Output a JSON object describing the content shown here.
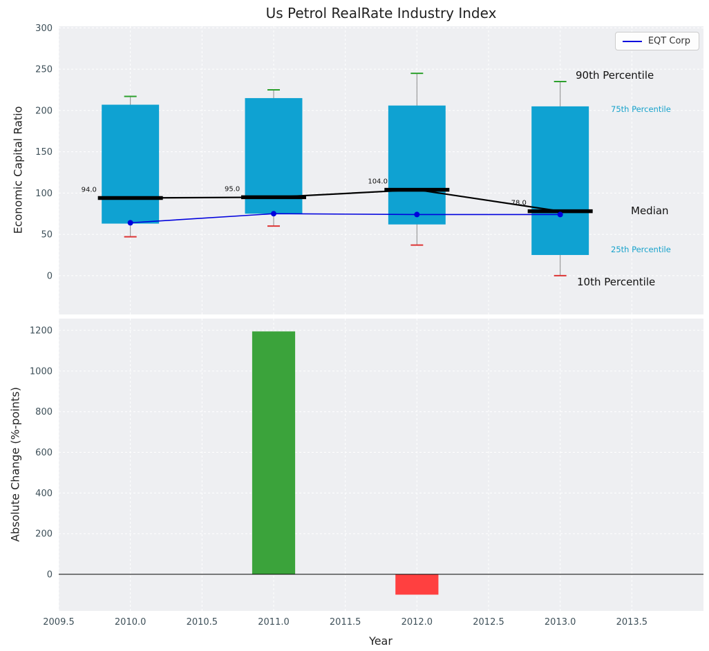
{
  "title": "Us Petrol RealRate Industry Index",
  "legend": {
    "label": "EQT Corp"
  },
  "labels": {
    "p90": "90th Percentile",
    "p75": "75th Percentile",
    "median": "Median",
    "p25": "25th Percentile",
    "p10": "10th Percentile",
    "xlabel": "Year",
    "ylabel_top": "Economic Capital Ratio",
    "ylabel_bottom": "Absolute Change (%-points)"
  },
  "colors": {
    "box": "#0fa2d2",
    "whisker": "#8a8a8a",
    "cap_high": "#2ca02c",
    "cap_low": "#dd3333",
    "median": "#000000",
    "eqt_line": "#0000dd",
    "bar_positive": "#3ba33b",
    "bar_negative": "#ff4040",
    "plot_bg": "#eeeff2",
    "grid": "#ffffff",
    "tick": "#3d4f58",
    "percentile_text": "#17a2cb",
    "text": "#111111"
  },
  "chart_data": [
    {
      "type": "box",
      "title": "Us Petrol RealRate Industry Index",
      "ylabel": "Economic Capital Ratio",
      "legend_position": "upper right",
      "grid": true,
      "xlim": [
        2009.5,
        2014.0
      ],
      "ylim": [
        -47,
        302
      ],
      "yticks": [
        0,
        50,
        100,
        150,
        200,
        250,
        300
      ],
      "xticks": [
        2009.5,
        2010.0,
        2010.5,
        2011.0,
        2011.5,
        2012.0,
        2012.5,
        2013.0,
        2013.5
      ],
      "years": [
        2010,
        2011,
        2012,
        2013
      ],
      "box_width": 0.4,
      "percentile_10": [
        47,
        60,
        37,
        0
      ],
      "percentile_25": [
        63,
        75,
        62,
        25
      ],
      "median": [
        94,
        95,
        104,
        78
      ],
      "percentile_75": [
        207,
        215,
        206,
        205
      ],
      "percentile_90": [
        217,
        225,
        245,
        235
      ],
      "median_labels": [
        "94.0",
        "95.0",
        "104.0",
        "78.0"
      ],
      "series": [
        {
          "name": "EQT Corp",
          "x": [
            2010,
            2011,
            2012,
            2013
          ],
          "values": [
            64,
            75,
            74,
            74
          ]
        }
      ]
    },
    {
      "type": "bar",
      "ylabel": "Absolute Change (%-points)",
      "xlabel": "Year",
      "grid": true,
      "xlim": [
        2009.5,
        2014.0
      ],
      "ylim": [
        -180,
        1258
      ],
      "yticks": [
        0,
        200,
        400,
        600,
        800,
        1000,
        1200
      ],
      "xticks": [
        2009.5,
        2010.0,
        2010.5,
        2011.0,
        2011.5,
        2012.0,
        2012.5,
        2013.0,
        2013.5
      ],
      "xtick_labels": [
        "2009.5",
        "2010.0",
        "2010.5",
        "2011.0",
        "2011.5",
        "2012.0",
        "2012.5",
        "2013.0",
        "2013.5"
      ],
      "x": [
        2011,
        2012
      ],
      "values": [
        1195,
        -100
      ],
      "bar_width": 0.3
    }
  ]
}
